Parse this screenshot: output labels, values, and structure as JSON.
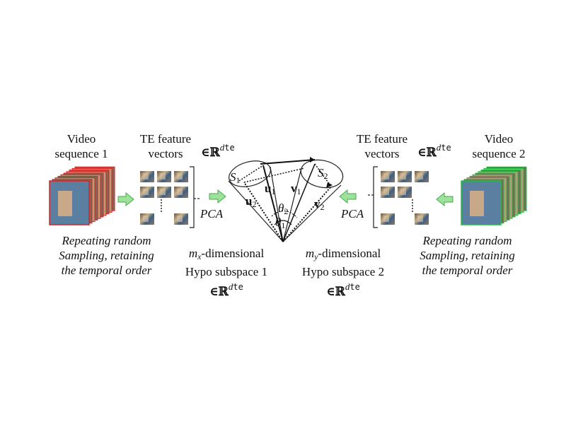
{
  "left": {
    "video_label_line1": "Video",
    "video_label_line2": "sequence 1",
    "te_label_line1": "TE feature",
    "te_label_line2": "vectors",
    "set_symbol": "∈ℝ",
    "set_exponent": "d",
    "set_exponent_sub": "te",
    "pca": "PCA",
    "sampling_line1": "Repeating random",
    "sampling_line2": "Sampling, retaining",
    "sampling_line3": "the temporal order",
    "subspace_dim_var": "m",
    "subspace_dim_sub": "x",
    "subspace_dim_text": "-dimensional",
    "subspace_name": "Hypo subspace 1",
    "subspace_set": "∈ℝ",
    "subspace_set_exp": "d",
    "subspace_set_exp_sub": "te",
    "cube_color": "#e02020"
  },
  "right": {
    "video_label_line1": "Video",
    "video_label_line2": "sequence 2",
    "te_label_line1": "TE feature",
    "te_label_line2": "vectors",
    "set_symbol": "∈ℝ",
    "set_exponent": "d",
    "set_exponent_sub": "te",
    "pca": "PCA",
    "sampling_line1": "Repeating random",
    "sampling_line2": "Sampling, retaining",
    "sampling_line3": "the temporal order",
    "subspace_dim_var": "m",
    "subspace_dim_sub": "y",
    "subspace_dim_text": "-dimensional",
    "subspace_name": "Hypo subspace 2",
    "subspace_set": "∈ℝ",
    "subspace_set_exp": "d",
    "subspace_set_exp_sub": "te",
    "cube_color": "#20c040"
  },
  "center": {
    "s1": "S",
    "s1_sub": "1",
    "s2": "S",
    "s2_sub": "2",
    "u1": "u",
    "u1_sub": "1",
    "u2": "u",
    "u2_sub": "2",
    "v1": "v",
    "v1_sub": "1",
    "v2": "v",
    "v2_sub": "2",
    "theta1": "θ",
    "theta1_sub": "1",
    "theta2": "θ",
    "theta2_sub": "2"
  },
  "colors": {
    "arrow_fill": "#9be29b",
    "arrow_stroke": "#4aa84a"
  }
}
